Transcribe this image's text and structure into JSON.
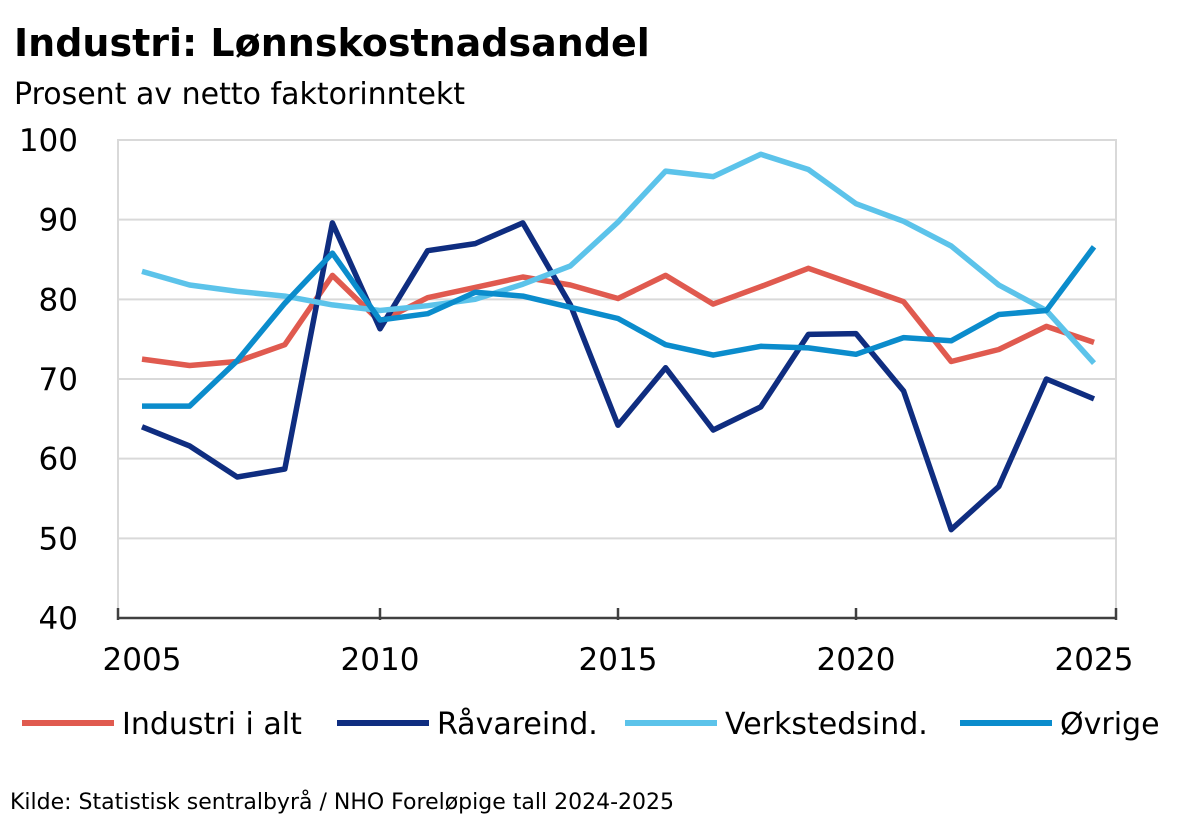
{
  "chart_data": {
    "type": "line",
    "title": "Industri: Lønnskostnadsandel",
    "subtitle": "Prosent av netto faktorinntekt",
    "xlabel": "",
    "ylabel": "",
    "xlim": [
      2005,
      2025
    ],
    "ylim": [
      40,
      100
    ],
    "y_ticks": [
      40,
      50,
      60,
      70,
      80,
      90,
      100
    ],
    "x_ticks": [
      2005,
      2010,
      2015,
      2020,
      2025
    ],
    "y_tick_labels": [
      "40",
      "50",
      "60",
      "70",
      "80",
      "90",
      "100"
    ],
    "x_tick_labels": [
      "2005",
      "2010",
      "2015",
      "2020",
      "2025"
    ],
    "grid": true,
    "legend_position": "bottom",
    "x": [
      2005,
      2006,
      2007,
      2008,
      2009,
      2010,
      2011,
      2012,
      2013,
      2014,
      2015,
      2016,
      2017,
      2018,
      2019,
      2020,
      2021,
      2022,
      2023,
      2024,
      2025
    ],
    "series": [
      {
        "name": "Industri i alt",
        "color": "#e05a4f",
        "values": [
          72.5,
          71.7,
          72.2,
          74.3,
          83.0,
          77.2,
          80.2,
          81.5,
          82.8,
          81.8,
          80.1,
          83.0,
          79.4,
          81.6,
          83.9,
          81.8,
          79.7,
          72.2,
          73.7,
          76.6,
          74.6
        ]
      },
      {
        "name": "Råvareind.",
        "color": "#0f2d80",
        "values": [
          64.0,
          61.6,
          57.7,
          58.7,
          89.6,
          76.3,
          86.1,
          87.0,
          89.6,
          79.3,
          64.2,
          71.4,
          63.6,
          66.5,
          75.6,
          75.7,
          68.5,
          51.1,
          56.5,
          70.0,
          67.5
        ]
      },
      {
        "name": "Verkstedsind.",
        "color": "#5cc3ea",
        "values": [
          83.5,
          81.8,
          81.0,
          80.4,
          79.3,
          78.6,
          79.2,
          80.0,
          81.9,
          84.2,
          89.7,
          96.1,
          95.4,
          98.2,
          96.3,
          92.0,
          89.8,
          86.7,
          81.8,
          78.6,
          72.0
        ]
      },
      {
        "name": "Øvrige",
        "color": "#0b8ccc",
        "values": [
          66.6,
          66.6,
          72.3,
          79.5,
          85.8,
          77.4,
          78.2,
          80.9,
          80.4,
          79.0,
          77.6,
          74.3,
          73.0,
          74.1,
          73.9,
          73.1,
          75.2,
          74.8,
          78.1,
          78.6,
          86.6
        ]
      }
    ],
    "source_note": "Kilde: Statistisk sentralbyrå / NHO   Foreløpige tall 2024-2025"
  }
}
